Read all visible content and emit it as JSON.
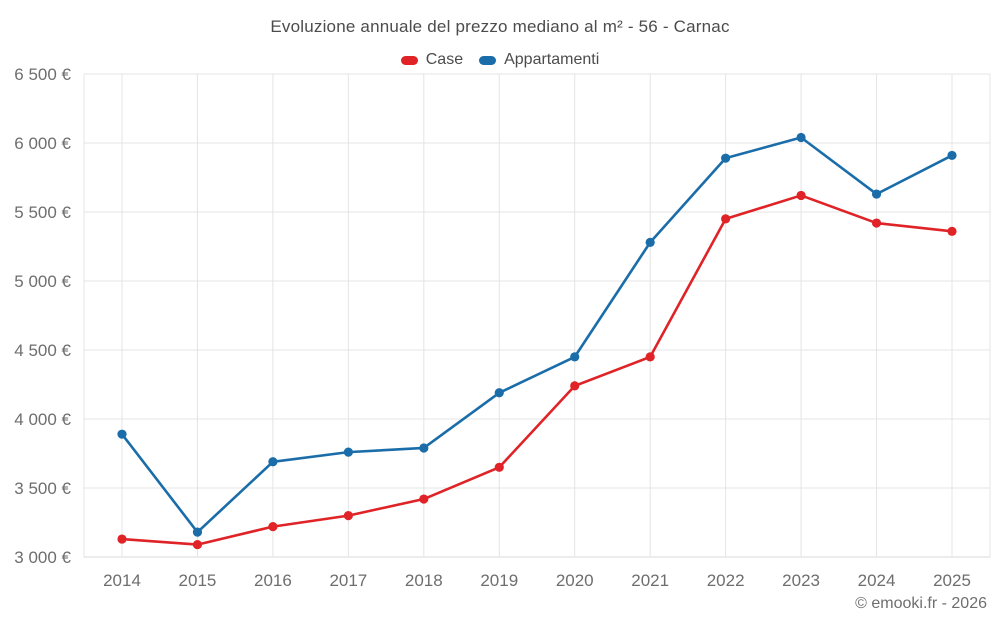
{
  "title": "Evoluzione annuale del prezzo mediano al m² - 56 - Carnac",
  "footer": "© emooki.fr - 2026",
  "colors": {
    "title_text": "#4c4c4c",
    "axis_text": "#6e6e6e",
    "gridline": "#e4e4e4",
    "axis_line": "#d9d9d9",
    "background": "#ffffff",
    "case_red": "#df2327",
    "appartamenti_blue": "#1a6da9"
  },
  "chart_data": {
    "type": "line",
    "title": "Evoluzione annuale del prezzo mediano al m² - 56 - Carnac",
    "x": [
      "2014",
      "2015",
      "2016",
      "2017",
      "2018",
      "2019",
      "2020",
      "2021",
      "2022",
      "2023",
      "2024",
      "2025"
    ],
    "series": [
      {
        "name": "Case",
        "color": "#df2327",
        "values": [
          3130,
          3090,
          3220,
          3300,
          3420,
          3650,
          4240,
          4450,
          5450,
          5620,
          5420,
          5360
        ]
      },
      {
        "name": "Appartamenti",
        "color": "#1a6da9",
        "values": [
          3890,
          3180,
          3690,
          3760,
          3790,
          4190,
          4450,
          5280,
          5890,
          6040,
          5630,
          5910
        ]
      }
    ],
    "ylim": [
      3000,
      6500
    ],
    "yticks": [
      {
        "value": 3000,
        "label": "3 000 €"
      },
      {
        "value": 3500,
        "label": "3 500 €"
      },
      {
        "value": 4000,
        "label": "4 000 €"
      },
      {
        "value": 4500,
        "label": "4 500 €"
      },
      {
        "value": 5000,
        "label": "5 000 €"
      },
      {
        "value": 5500,
        "label": "5 500 €"
      },
      {
        "value": 6000,
        "label": "6 000 €"
      },
      {
        "value": 6500,
        "label": "6 500 €"
      }
    ],
    "xlabel": "",
    "ylabel": "",
    "grid": true,
    "legend_position": "top",
    "marker": "circle"
  }
}
